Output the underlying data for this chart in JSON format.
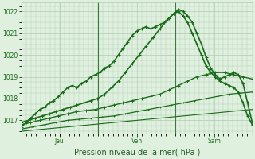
{
  "bg_color": "#dff0df",
  "grid_color": "#b0ccb0",
  "line_color": "#1a6b1a",
  "marker_color": "#1a6b1a",
  "xlabel": "Pression niveau de la mer( hPa )",
  "xlabel_color": "#2a5a2a",
  "tick_color": "#1a6b1a",
  "ylim": [
    1016.4,
    1022.4
  ],
  "yticks": [
    1017,
    1018,
    1019,
    1020,
    1021,
    1022
  ],
  "x_day_labels": [
    "Jeu",
    "Ven",
    "Sam"
  ],
  "series": [
    {
      "x": [
        0.0,
        0.02,
        0.04,
        0.06,
        0.08,
        0.1,
        0.12,
        0.14,
        0.16,
        0.18,
        0.2,
        0.22,
        0.24,
        0.26,
        0.28,
        0.3,
        0.32,
        0.34,
        0.36,
        0.38,
        0.4,
        0.42,
        0.44,
        0.46,
        0.48,
        0.5,
        0.52,
        0.54,
        0.56,
        0.58,
        0.6,
        0.62,
        0.64,
        0.66,
        0.68,
        0.7,
        0.72,
        0.74,
        0.76,
        0.78,
        0.8,
        0.82,
        0.84,
        0.86,
        0.88,
        0.9,
        0.92,
        0.94,
        0.96,
        0.98,
        1.0
      ],
      "y": [
        1016.7,
        1016.9,
        1017.1,
        1017.3,
        1017.5,
        1017.6,
        1017.8,
        1017.9,
        1018.1,
        1018.3,
        1018.5,
        1018.6,
        1018.5,
        1018.7,
        1018.8,
        1019.0,
        1019.1,
        1019.2,
        1019.4,
        1019.5,
        1019.7,
        1020.0,
        1020.3,
        1020.6,
        1020.9,
        1021.1,
        1021.2,
        1021.3,
        1021.2,
        1021.3,
        1021.4,
        1021.5,
        1021.7,
        1021.9,
        1022.1,
        1022.0,
        1021.8,
        1021.5,
        1021.0,
        1020.5,
        1019.9,
        1019.4,
        1019.1,
        1018.9,
        1019.0,
        1019.1,
        1019.2,
        1019.1,
        1018.7,
        1017.8,
        1016.9
      ],
      "lw": 1.2,
      "marker": "+",
      "ms": 3.5,
      "mew": 0.8
    },
    {
      "x": [
        0.0,
        0.03,
        0.06,
        0.09,
        0.12,
        0.15,
        0.18,
        0.21,
        0.24,
        0.27,
        0.3,
        0.33,
        0.36,
        0.39,
        0.42,
        0.45,
        0.48,
        0.51,
        0.54,
        0.57,
        0.6,
        0.63,
        0.66,
        0.68,
        0.7,
        0.72,
        0.74,
        0.76,
        0.78,
        0.8,
        0.82,
        0.84,
        0.86,
        0.88,
        0.9,
        0.92,
        0.94,
        0.96,
        0.98,
        1.0
      ],
      "y": [
        1016.9,
        1017.0,
        1017.1,
        1017.2,
        1017.3,
        1017.4,
        1017.5,
        1017.6,
        1017.7,
        1017.8,
        1017.9,
        1018.0,
        1018.2,
        1018.5,
        1018.8,
        1019.2,
        1019.6,
        1020.0,
        1020.4,
        1020.8,
        1021.2,
        1021.6,
        1021.9,
        1022.0,
        1021.8,
        1021.5,
        1021.0,
        1020.5,
        1020.0,
        1019.5,
        1019.2,
        1019.0,
        1018.8,
        1018.7,
        1018.6,
        1018.5,
        1018.3,
        1017.8,
        1017.2,
        1016.8
      ],
      "lw": 1.2,
      "marker": "+",
      "ms": 3.0,
      "mew": 0.8
    },
    {
      "x": [
        0.0,
        0.04,
        0.08,
        0.12,
        0.16,
        0.2,
        0.24,
        0.28,
        0.32,
        0.36,
        0.4,
        0.44,
        0.48,
        0.52,
        0.56,
        0.6,
        0.64,
        0.68,
        0.72,
        0.76,
        0.8,
        0.84,
        0.88,
        0.92,
        0.96,
        1.0
      ],
      "y": [
        1016.8,
        1016.9,
        1017.0,
        1017.1,
        1017.2,
        1017.3,
        1017.4,
        1017.45,
        1017.5,
        1017.6,
        1017.7,
        1017.8,
        1017.9,
        1018.0,
        1018.1,
        1018.2,
        1018.4,
        1018.6,
        1018.8,
        1019.0,
        1019.1,
        1019.2,
        1019.2,
        1019.1,
        1019.0,
        1018.9
      ],
      "lw": 1.0,
      "marker": "+",
      "ms": 2.5,
      "mew": 0.7
    },
    {
      "x": [
        0.0,
        0.05,
        0.1,
        0.15,
        0.2,
        0.25,
        0.3,
        0.35,
        0.4,
        0.45,
        0.5,
        0.55,
        0.6,
        0.65,
        0.7,
        0.75,
        0.8,
        0.85,
        0.9,
        0.95,
        1.0
      ],
      "y": [
        1016.6,
        1016.7,
        1016.8,
        1016.9,
        1017.0,
        1017.05,
        1017.1,
        1017.15,
        1017.2,
        1017.3,
        1017.4,
        1017.5,
        1017.6,
        1017.7,
        1017.8,
        1017.9,
        1018.0,
        1018.1,
        1018.2,
        1018.25,
        1018.3
      ],
      "lw": 0.9,
      "marker": "+",
      "ms": 2.0,
      "mew": 0.6
    },
    {
      "x": [
        0.0,
        0.05,
        0.1,
        0.15,
        0.2,
        0.25,
        0.3,
        0.35,
        0.4,
        0.45,
        0.5,
        0.55,
        0.6,
        0.65,
        0.7,
        0.75,
        0.8,
        0.85,
        0.9,
        0.95,
        1.0
      ],
      "y": [
        1016.5,
        1016.55,
        1016.6,
        1016.65,
        1016.7,
        1016.75,
        1016.8,
        1016.85,
        1016.9,
        1016.95,
        1017.0,
        1017.05,
        1017.1,
        1017.15,
        1017.2,
        1017.25,
        1017.3,
        1017.35,
        1017.4,
        1017.45,
        1017.5
      ],
      "lw": 0.8,
      "marker": null,
      "ms": 0,
      "mew": 0
    }
  ],
  "vline_x": [
    0.333,
    0.667
  ],
  "vline_color": "#3a7a3a",
  "vline_lw": 0.8,
  "tick_fontsize": 5.5,
  "xlabel_fontsize": 7
}
